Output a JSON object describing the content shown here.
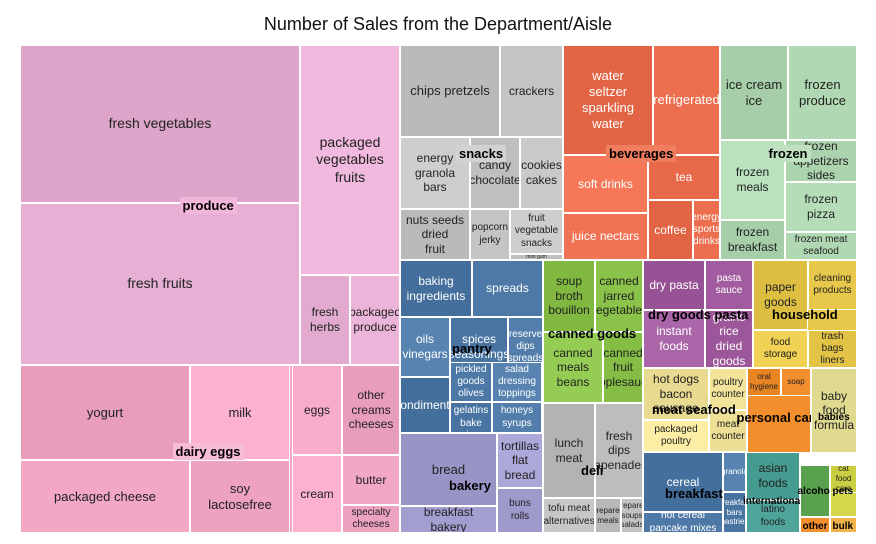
{
  "chart_data": {
    "type": "treemap",
    "title": "Number of Sales from the Department/Aisle",
    "groups": [
      {
        "name": "produce",
        "color": "#e6afd3",
        "items": [
          {
            "label": "fresh vegetables",
            "value": 145
          },
          {
            "label": "fresh fruits",
            "value": 168
          },
          {
            "label": "packaged vegetables fruits",
            "value": 59
          },
          {
            "label": "fresh herbs",
            "value": 10
          },
          {
            "label": "packaged produce",
            "value": 8
          }
        ]
      },
      {
        "name": "dairy eggs",
        "color": "#f2a7c5",
        "items": [
          {
            "label": "yogurt",
            "value": 41
          },
          {
            "label": "packaged cheese",
            "value": 31
          },
          {
            "label": "milk",
            "value": 41
          },
          {
            "label": "soy lactosefree",
            "value": 31
          },
          {
            "label": "eggs",
            "value": 20
          },
          {
            "label": "other creams cheeses",
            "value": 13
          },
          {
            "label": "butter",
            "value": 12
          },
          {
            "label": "cream",
            "value": 12
          },
          {
            "label": "specialty cheeses",
            "value": 6
          }
        ]
      },
      {
        "name": "snacks",
        "color": "#c4c4c4",
        "items": [
          {
            "label": "chips pretzels",
            "value": 58
          },
          {
            "label": "crackers",
            "value": 38
          },
          {
            "label": "energy granola bars",
            "value": 30
          },
          {
            "label": "candy chocolate",
            "value": 17
          },
          {
            "label": "cookies cakes",
            "value": 15
          },
          {
            "label": "nuts seeds dried fruit",
            "value": 22
          },
          {
            "label": "popcorn jerky",
            "value": 10
          },
          {
            "label": "fruit vegetable snacks",
            "value": 10
          },
          {
            "label": "mint gum",
            "value": 3
          }
        ]
      },
      {
        "name": "beverages",
        "color": "#ec6e4e",
        "items": [
          {
            "label": "water seltzer sparkling water",
            "value": 50
          },
          {
            "label": "refrigerated",
            "value": 40
          },
          {
            "label": "soft drinks",
            "value": 30
          },
          {
            "label": "tea",
            "value": 18
          },
          {
            "label": "juice nectars",
            "value": 25
          },
          {
            "label": "coffee",
            "value": 14
          },
          {
            "label": "energy sports drinks",
            "value": 10
          }
        ]
      },
      {
        "name": "frozen",
        "color": "#b0d8b3",
        "items": [
          {
            "label": "ice cream ice",
            "value": 25
          },
          {
            "label": "frozen produce",
            "value": 25
          },
          {
            "label": "frozen meals",
            "value": 30
          },
          {
            "label": "frozen appetizers sides",
            "value": 13
          },
          {
            "label": "frozen pizza",
            "value": 13
          },
          {
            "label": "frozen breakfast",
            "value": 9
          },
          {
            "label": "frozen meat seafood",
            "value": 5
          }
        ]
      },
      {
        "name": "pantry",
        "color": "#4e79a7",
        "items": [
          {
            "label": "baking ingredients",
            "value": 17
          },
          {
            "label": "spreads",
            "value": 17
          },
          {
            "label": "oils vinegars",
            "value": 12
          },
          {
            "label": "spices seasonings",
            "value": 8
          },
          {
            "label": "preserved dips spreads",
            "value": 7
          },
          {
            "label": "condiments",
            "value": 8
          },
          {
            "label": "pickled goods olives",
            "value": 6
          },
          {
            "label": "salad dressing toppings",
            "value": 6
          },
          {
            "label": "doughs gelatins bake mixes",
            "value": 5
          },
          {
            "label": "honeys syrups",
            "value": 4
          }
        ]
      },
      {
        "name": "canned goods",
        "color": "#8bc34a",
        "items": [
          {
            "label": "soup broth bouillon",
            "value": 15
          },
          {
            "label": "canned jarred vegetables",
            "value": 13
          },
          {
            "label": "canned meals beans",
            "value": 15
          },
          {
            "label": "canned fruit applesauce",
            "value": 7
          }
        ]
      },
      {
        "name": "dry goods pasta",
        "color": "#a05c9e",
        "items": [
          {
            "label": "dry pasta",
            "value": 13
          },
          {
            "label": "pasta sauce",
            "value": 11
          },
          {
            "label": "instant foods",
            "value": 13
          },
          {
            "label": "grains rice dried goods",
            "value": 8
          }
        ]
      },
      {
        "name": "household",
        "color": "#e8c84a",
        "items": [
          {
            "label": "paper goods",
            "value": 12
          },
          {
            "label": "cleaning products",
            "value": 10
          },
          {
            "label": "food storage",
            "value": 4
          },
          {
            "label": "trash bags liners",
            "value": 4
          }
        ]
      },
      {
        "name": "meat seafood",
        "color": "#f2e49a",
        "items": [
          {
            "label": "hot dogs bacon sausage",
            "value": 13
          },
          {
            "label": "poultry counter",
            "value": 7
          },
          {
            "label": "packaged poultry",
            "value": 8
          },
          {
            "label": "meat counter",
            "value": 4
          }
        ]
      },
      {
        "name": "deli",
        "color": "#bdbdbd",
        "items": [
          {
            "label": "lunch meat",
            "value": 17
          },
          {
            "label": "fresh dips tapenades",
            "value": 15
          },
          {
            "label": "tofu meat alternatives",
            "value": 5
          },
          {
            "label": "prepared meals",
            "value": 4
          },
          {
            "label": "prepared soups salads",
            "value": 3
          }
        ]
      },
      {
        "name": "bakery",
        "color": "#a39ed0",
        "items": [
          {
            "label": "bread",
            "value": 21
          },
          {
            "label": "breakfast bakery",
            "value": 10
          },
          {
            "label": "tortillas flat bread",
            "value": 7
          },
          {
            "label": "buns rolls",
            "value": 6
          }
        ]
      },
      {
        "name": "personal care",
        "color": "#f28e2b",
        "items": [
          {
            "label": "oral hygiene",
            "value": 3
          },
          {
            "label": "soap",
            "value": 3
          }
        ]
      },
      {
        "name": "babies",
        "color": "#eae49b",
        "items": [
          {
            "label": "baby food formula",
            "value": 9
          }
        ]
      },
      {
        "name": "breakfast",
        "color": "#4e79a7",
        "items": [
          {
            "label": "cereal",
            "value": 13
          },
          {
            "label": "hot cereal pancake mixes",
            "value": 6
          },
          {
            "label": "granola",
            "value": 3
          },
          {
            "label": "breakfast bars pastries",
            "value": 2
          }
        ]
      },
      {
        "name": "international",
        "color": "#4fa59a",
        "items": [
          {
            "label": "asian foods",
            "value": 6
          },
          {
            "label": "latino foods",
            "value": 3
          }
        ]
      },
      {
        "name": "alcohol",
        "color": "#59a14f",
        "items": []
      },
      {
        "name": "pets",
        "color": "#d4d84b",
        "items": [
          {
            "label": "cat food care",
            "value": 2
          }
        ]
      },
      {
        "name": "other",
        "color": "#f28e2b",
        "items": []
      },
      {
        "name": "bulk",
        "color": "#f2b34a",
        "items": []
      }
    ]
  }
}
